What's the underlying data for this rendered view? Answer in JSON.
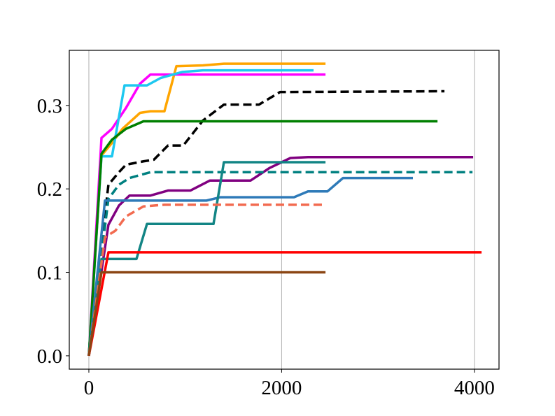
{
  "chart_data": {
    "type": "line",
    "xlim": [
      -203,
      4255
    ],
    "ylim": [
      -0.016,
      0.366
    ],
    "xticks": [
      0,
      2000,
      4000
    ],
    "yticks": [
      {
        "value": 0,
        "label": "0.0"
      },
      0.1,
      0.2,
      0.3
    ],
    "grid_x": true,
    "series": [
      {
        "color": "#ffa500",
        "dashed": false,
        "x": [
          0,
          131,
          240,
          349,
          530,
          639,
          784,
          908,
          1184,
          1401,
          2455
        ],
        "values": [
          0,
          0.24,
          0.255,
          0.272,
          0.291,
          0.293,
          0.293,
          0.347,
          0.348,
          0.35,
          0.35
        ]
      },
      {
        "color": "#ff00ff",
        "dashed": false,
        "x": [
          0,
          131,
          240,
          385,
          530,
          639,
          821,
          2455
        ],
        "values": [
          0,
          0.261,
          0.272,
          0.297,
          0.326,
          0.337,
          0.337,
          0.337
        ]
      },
      {
        "color": "#1ec8f0",
        "dashed": false,
        "x": [
          0,
          131,
          240,
          370,
          603,
          747,
          966,
          1184,
          2331
        ],
        "values": [
          0,
          0.239,
          0.239,
          0.324,
          0.324,
          0.333,
          0.34,
          0.342,
          0.342
        ]
      },
      {
        "color": "#000000",
        "dashed": true,
        "x": [
          0,
          203,
          312,
          385,
          566,
          675,
          821,
          980,
          1184,
          1401,
          1765,
          1983,
          3689
        ],
        "values": [
          0,
          0.205,
          0.22,
          0.229,
          0.233,
          0.235,
          0.252,
          0.252,
          0.282,
          0.301,
          0.301,
          0.316,
          0.317
        ]
      },
      {
        "color": "#008000",
        "dashed": false,
        "x": [
          0,
          131,
          240,
          385,
          566,
          3617
        ],
        "values": [
          0,
          0.242,
          0.259,
          0.272,
          0.281,
          0.281
        ]
      },
      {
        "color": "#800080",
        "dashed": false,
        "x": [
          0,
          203,
          312,
          421,
          639,
          821,
          1053,
          1256,
          1678,
          1874,
          2091,
          2273,
          3987
        ],
        "values": [
          0,
          0.157,
          0.18,
          0.192,
          0.192,
          0.198,
          0.198,
          0.21,
          0.21,
          0.225,
          0.237,
          0.238,
          0.238
        ]
      },
      {
        "color": "#008080",
        "dashed": true,
        "x": [
          0,
          203,
          312,
          421,
          639,
          3980
        ],
        "values": [
          0,
          0.188,
          0.205,
          0.213,
          0.22,
          0.22
        ]
      },
      {
        "color": "#2e7ab8",
        "dashed": false,
        "x": [
          0,
          167,
          1220,
          1365,
          2128,
          2273,
          2476,
          2636,
          3362
        ],
        "values": [
          0,
          0.186,
          0.186,
          0.19,
          0.19,
          0.197,
          0.197,
          0.213,
          0.213
        ]
      },
      {
        "color": "#138585",
        "dashed": false,
        "x": [
          0,
          131,
          494,
          603,
          1293,
          1401,
          2455
        ],
        "values": [
          0,
          0.116,
          0.116,
          0.158,
          0.158,
          0.232,
          0.232
        ]
      },
      {
        "color": "#f26b50",
        "dashed": true,
        "x": [
          0,
          167,
          276,
          385,
          566,
          784,
          2455
        ],
        "values": [
          0,
          0.142,
          0.15,
          0.167,
          0.179,
          0.181,
          0.181
        ]
      },
      {
        "color": "#ff0000",
        "dashed": false,
        "x": [
          0,
          203,
          4074
        ],
        "values": [
          0,
          0.124,
          0.124
        ]
      },
      {
        "color": "#8b4513",
        "dashed": false,
        "x": [
          0,
          131,
          2455
        ],
        "values": [
          0,
          0.1,
          0.1
        ]
      }
    ]
  }
}
